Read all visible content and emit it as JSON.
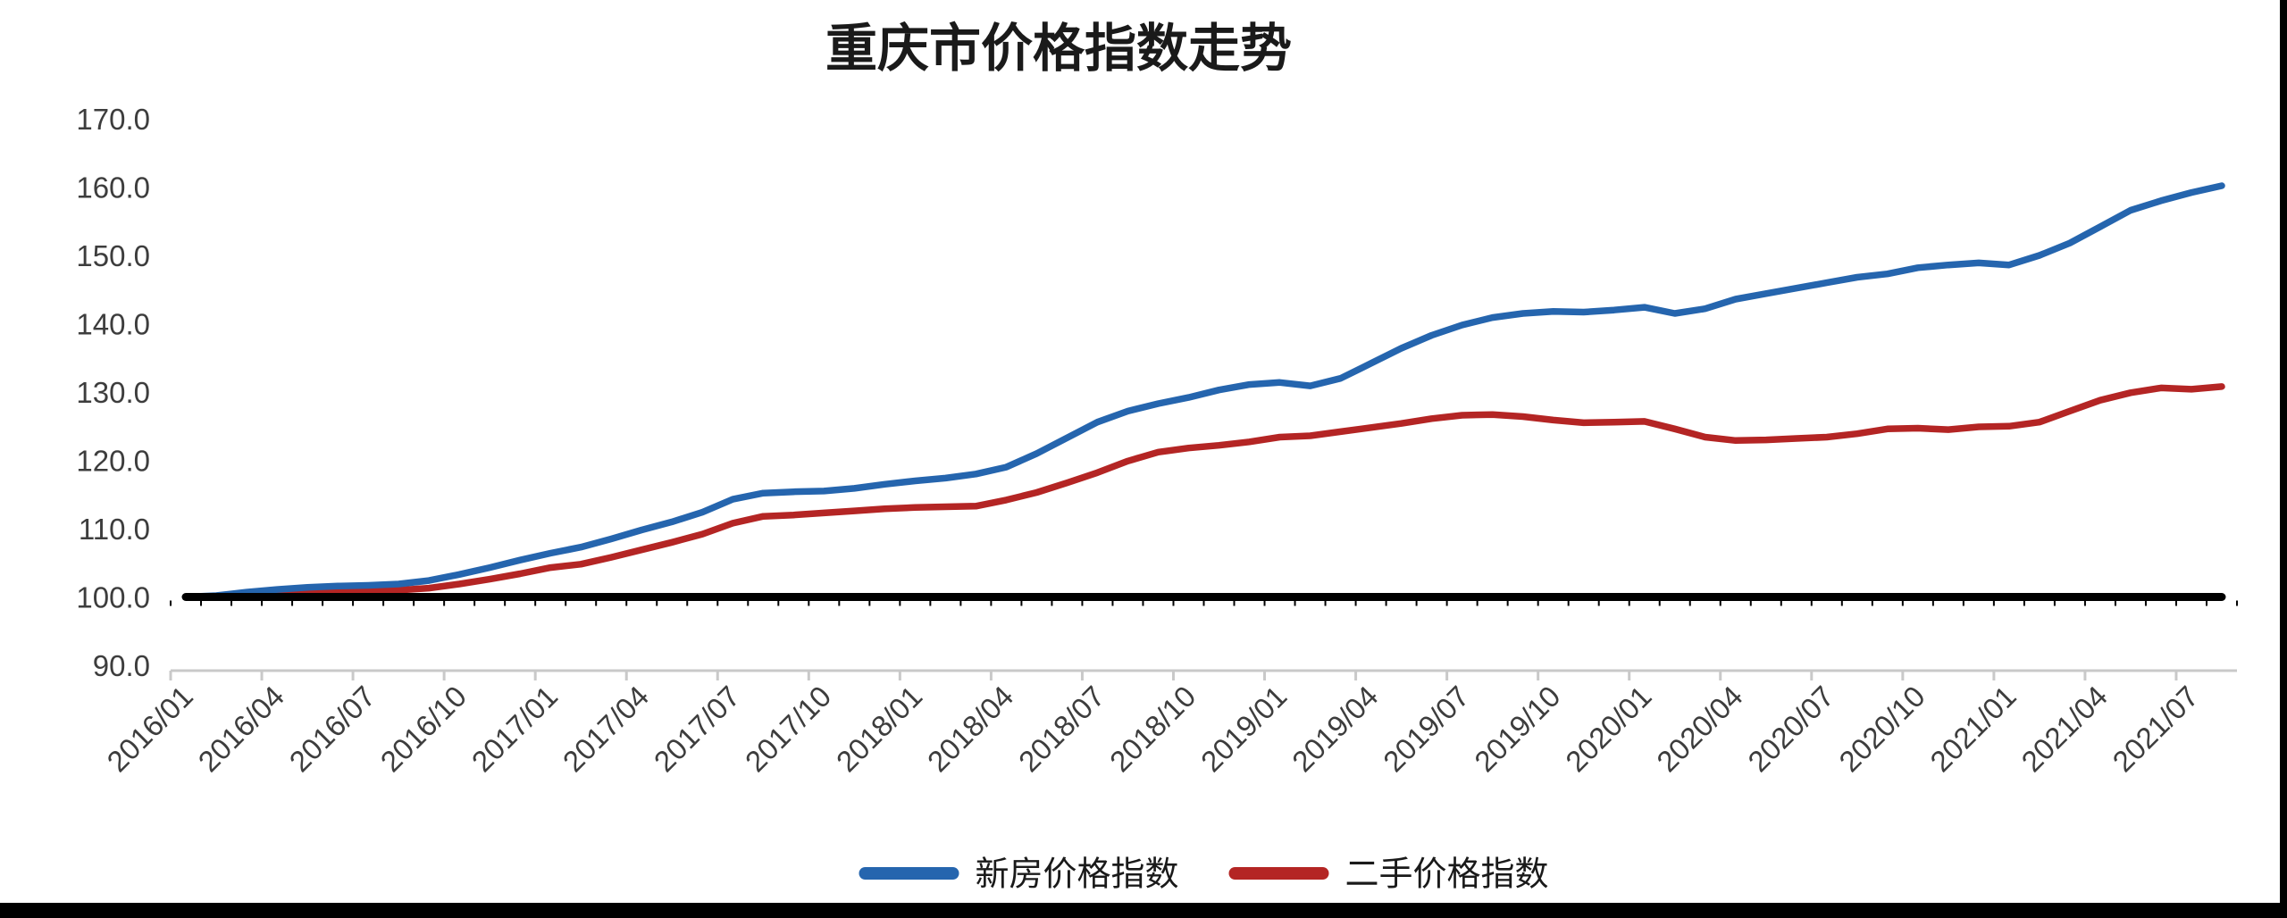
{
  "chart_data": {
    "type": "line",
    "title": "重庆市价格指数走势",
    "x": [
      "2016/01",
      "2016/02",
      "2016/03",
      "2016/04",
      "2016/05",
      "2016/06",
      "2016/07",
      "2016/08",
      "2016/09",
      "2016/10",
      "2016/11",
      "2016/12",
      "2017/01",
      "2017/02",
      "2017/03",
      "2017/04",
      "2017/05",
      "2017/06",
      "2017/07",
      "2017/08",
      "2017/09",
      "2017/10",
      "2017/11",
      "2017/12",
      "2018/01",
      "2018/02",
      "2018/03",
      "2018/04",
      "2018/05",
      "2018/06",
      "2018/07",
      "2018/08",
      "2018/09",
      "2018/10",
      "2018/11",
      "2018/12",
      "2019/01",
      "2019/02",
      "2019/03",
      "2019/04",
      "2019/05",
      "2019/06",
      "2019/07",
      "2019/08",
      "2019/09",
      "2019/10",
      "2019/11",
      "2019/12",
      "2020/01",
      "2020/02",
      "2020/03",
      "2020/04",
      "2020/05",
      "2020/06",
      "2020/07",
      "2020/08",
      "2020/09",
      "2020/10",
      "2020/11",
      "2020/12",
      "2021/01",
      "2021/02",
      "2021/03",
      "2021/04",
      "2021/05",
      "2021/06",
      "2021/07",
      "2021/08"
    ],
    "x_axis": {
      "tick_every": 3,
      "label_rotation_deg": -45
    },
    "y_axis": {
      "min": 90,
      "max": 170,
      "ticks": [
        {
          "label": "90.0",
          "value": 90
        },
        {
          "label": "100.0",
          "value": 100
        },
        {
          "label": "110.0",
          "value": 110
        },
        {
          "label": "120.0",
          "value": 120
        },
        {
          "label": "130.0",
          "value": 130
        },
        {
          "label": "140.0",
          "value": 140
        },
        {
          "label": "150.0",
          "value": 150
        },
        {
          "label": "160.0",
          "value": 160
        },
        {
          "label": "170.0",
          "value": 170
        }
      ]
    },
    "grid": false,
    "legend_position": "bottom",
    "series": [
      {
        "name": "基准线(100)",
        "role": "baseline",
        "color": "#000000",
        "in_legend": false,
        "constant": 100,
        "values": [
          100,
          100,
          100,
          100,
          100,
          100,
          100,
          100,
          100,
          100,
          100,
          100,
          100,
          100,
          100,
          100,
          100,
          100,
          100,
          100,
          100,
          100,
          100,
          100,
          100,
          100,
          100,
          100,
          100,
          100,
          100,
          100,
          100,
          100,
          100,
          100,
          100,
          100,
          100,
          100,
          100,
          100,
          100,
          100,
          100,
          100,
          100,
          100,
          100,
          100,
          100,
          100,
          100,
          100,
          100,
          100,
          100,
          100,
          100,
          100,
          100,
          100,
          100,
          100,
          100,
          100,
          100,
          100
        ]
      },
      {
        "name": "二手价格指数",
        "role": "line",
        "color": "#b42524",
        "in_legend": true,
        "values": [
          100.0,
          100.1,
          100.3,
          100.5,
          100.7,
          100.8,
          100.9,
          101.0,
          101.3,
          101.9,
          102.6,
          103.4,
          104.3,
          104.8,
          105.8,
          106.9,
          108.0,
          109.2,
          110.8,
          111.8,
          112.0,
          112.3,
          112.6,
          112.9,
          113.1,
          113.2,
          113.3,
          114.2,
          115.3,
          116.7,
          118.2,
          119.9,
          121.2,
          121.8,
          122.2,
          122.7,
          123.4,
          123.6,
          124.2,
          124.8,
          125.4,
          126.1,
          126.6,
          126.7,
          126.4,
          125.9,
          125.5,
          125.6,
          125.7,
          124.6,
          123.4,
          122.9,
          123.0,
          123.2,
          123.4,
          123.9,
          124.6,
          124.7,
          124.5,
          124.9,
          125.0,
          125.6,
          127.2,
          128.8,
          129.9,
          130.6,
          130.4,
          130.8
        ]
      },
      {
        "name": "新房价格指数",
        "role": "line",
        "color": "#2565ae",
        "in_legend": true,
        "values": [
          100.0,
          100.2,
          100.7,
          101.1,
          101.4,
          101.6,
          101.7,
          101.9,
          102.4,
          103.3,
          104.3,
          105.4,
          106.4,
          107.3,
          108.5,
          109.8,
          111.0,
          112.4,
          114.3,
          115.2,
          115.4,
          115.5,
          115.9,
          116.5,
          117.0,
          117.4,
          118.0,
          119.0,
          121.0,
          123.3,
          125.6,
          127.2,
          128.3,
          129.2,
          130.3,
          131.1,
          131.4,
          130.9,
          132.0,
          134.2,
          136.4,
          138.3,
          139.8,
          140.9,
          141.5,
          141.8,
          141.7,
          142.0,
          142.4,
          141.5,
          142.2,
          143.6,
          144.4,
          145.2,
          146.0,
          146.8,
          147.3,
          148.2,
          148.6,
          148.9,
          148.6,
          150.0,
          151.8,
          154.2,
          156.6,
          158.0,
          159.2,
          160.2
        ]
      }
    ],
    "legend_order": [
      "新房价格指数",
      "二手价格指数"
    ]
  }
}
